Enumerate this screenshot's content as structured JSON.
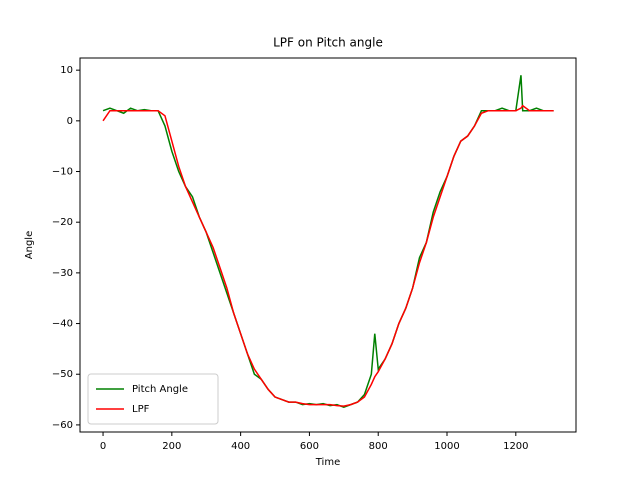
{
  "chart_data": {
    "type": "line",
    "title": "LPF on Pitch angle",
    "xlabel": "Time",
    "ylabel": "Angle",
    "x": [
      0,
      20,
      40,
      60,
      80,
      100,
      120,
      140,
      160,
      180,
      200,
      220,
      240,
      260,
      280,
      300,
      320,
      340,
      360,
      380,
      400,
      420,
      440,
      460,
      480,
      500,
      520,
      540,
      560,
      580,
      600,
      620,
      640,
      660,
      680,
      700,
      720,
      740,
      760,
      780,
      790,
      800,
      820,
      840,
      860,
      880,
      900,
      920,
      940,
      960,
      980,
      1000,
      1020,
      1040,
      1060,
      1080,
      1100,
      1120,
      1140,
      1160,
      1180,
      1200,
      1215,
      1220,
      1240,
      1260,
      1280,
      1300,
      1310
    ],
    "series": [
      {
        "name": "Pitch Angle",
        "color": "#008000",
        "values": [
          2,
          2.5,
          2,
          1.5,
          2.5,
          2,
          2.2,
          2,
          2,
          -1,
          -6,
          -10,
          -13,
          -15,
          -19,
          -22,
          -26,
          -30,
          -34,
          -38,
          -42,
          -46,
          -50,
          -51,
          -53,
          -54.5,
          -55,
          -55.5,
          -55.5,
          -56,
          -55.8,
          -56,
          -55.8,
          -56.2,
          -56,
          -56.5,
          -56,
          -55.5,
          -54,
          -50,
          -42,
          -49,
          -47,
          -44,
          -40,
          -37,
          -33,
          -27,
          -24,
          -18,
          -14,
          -11,
          -7,
          -4,
          -3,
          -1,
          2,
          2,
          2,
          2.5,
          2,
          2,
          9,
          2,
          2,
          2.5,
          2,
          2,
          2
        ]
      },
      {
        "name": "LPF",
        "color": "#ff0000",
        "values": [
          0,
          2,
          2,
          2,
          2,
          2,
          2,
          2,
          2,
          1,
          -4,
          -9,
          -13,
          -16,
          -19,
          -22,
          -25,
          -29,
          -33,
          -38,
          -42,
          -46,
          -49,
          -51,
          -53,
          -54.5,
          -55,
          -55.5,
          -55.5,
          -55.8,
          -56,
          -56,
          -56,
          -56,
          -56.2,
          -56.3,
          -56,
          -55.5,
          -54.5,
          -52,
          -50.5,
          -49.5,
          -47,
          -44,
          -40,
          -37,
          -33,
          -28,
          -24,
          -19,
          -15,
          -11,
          -7,
          -4,
          -3,
          -1,
          1.5,
          2,
          2,
          2,
          2,
          2,
          2.5,
          3,
          2,
          2,
          2,
          2,
          2
        ]
      }
    ],
    "xlim": [
      -67,
      1375
    ],
    "xticks": [
      0,
      200,
      400,
      600,
      800,
      1000,
      1200
    ],
    "ylim": [
      -61.4,
      12.4
    ],
    "yticks": [
      {
        "value": -60,
        "label": "−60"
      },
      {
        "value": -50,
        "label": "−50"
      },
      {
        "value": -40,
        "label": "−40"
      },
      {
        "value": -30,
        "label": "−30"
      },
      {
        "value": -20,
        "label": "−20"
      },
      {
        "value": -10,
        "label": "−10"
      },
      0,
      10
    ],
    "legend": "lower left"
  }
}
